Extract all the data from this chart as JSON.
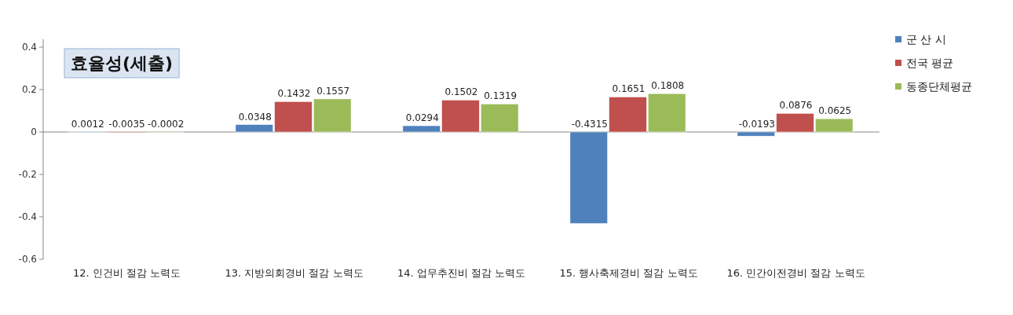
{
  "chart_data": {
    "type": "bar",
    "title": "효율성(세출)",
    "categories": [
      "12. 인건비 절감 노력도",
      "13. 지방의회경비 절감 노력도",
      "14. 업무추진비 절감 노력도",
      "15. 행사축제경비 절감 노력도",
      "16. 민간이전경비 절감 노력도"
    ],
    "series": [
      {
        "name": "군 산 시",
        "color": "#4f81bd",
        "values": [
          0.0012,
          0.0348,
          0.0294,
          -0.4315,
          -0.0193
        ]
      },
      {
        "name": "전국 평균",
        "color": "#c0504d",
        "values": [
          -0.0035,
          0.1432,
          0.1502,
          0.1651,
          0.0876
        ]
      },
      {
        "name": "동종단체평균",
        "color": "#9bbb59",
        "values": [
          -0.0002,
          0.1557,
          0.1319,
          0.1808,
          0.0625
        ]
      }
    ],
    "ylim": [
      -0.6,
      0.4
    ],
    "yticks": [
      -0.6,
      -0.4,
      -0.2,
      0,
      0.2,
      0.4
    ],
    "data_labels": true,
    "legend": "right"
  }
}
